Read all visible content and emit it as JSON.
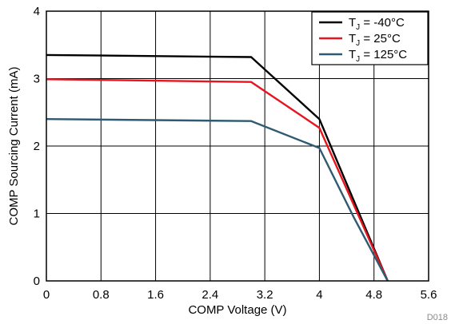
{
  "chart_data": {
    "type": "line",
    "xlabel": "COMP Voltage (V)",
    "ylabel": "COMP Sourcing Current (mA)",
    "xlim": [
      0,
      5.6
    ],
    "ylim": [
      0,
      4
    ],
    "x_ticks": [
      "0",
      "0.8",
      "1.6",
      "2.4",
      "3.2",
      "4",
      "4.8",
      "5.6"
    ],
    "y_ticks": [
      "0",
      "1",
      "2",
      "3",
      "4"
    ],
    "grid": true,
    "legend_position": "top-right",
    "figure_id": "D018",
    "series": [
      {
        "legend_main": "T",
        "legend_sub": "J",
        "legend_rest": " = -40°C",
        "color": "#000000",
        "points": [
          [
            0,
            3.35
          ],
          [
            3.0,
            3.32
          ],
          [
            4.0,
            2.4
          ],
          [
            5.0,
            0.0
          ]
        ]
      },
      {
        "legend_main": "T",
        "legend_sub": "J",
        "legend_rest": " = 25°C",
        "color": "#e8141e",
        "points": [
          [
            0,
            2.99
          ],
          [
            3.0,
            2.95
          ],
          [
            4.0,
            2.27
          ],
          [
            5.0,
            0.0
          ]
        ]
      },
      {
        "legend_main": "T",
        "legend_sub": "J",
        "legend_rest": " = 125°C",
        "color": "#2f5a72",
        "points": [
          [
            0,
            2.4
          ],
          [
            3.0,
            2.37
          ],
          [
            4.0,
            1.97
          ],
          [
            4.5,
            0.95
          ],
          [
            5.0,
            0.0
          ]
        ]
      }
    ]
  }
}
